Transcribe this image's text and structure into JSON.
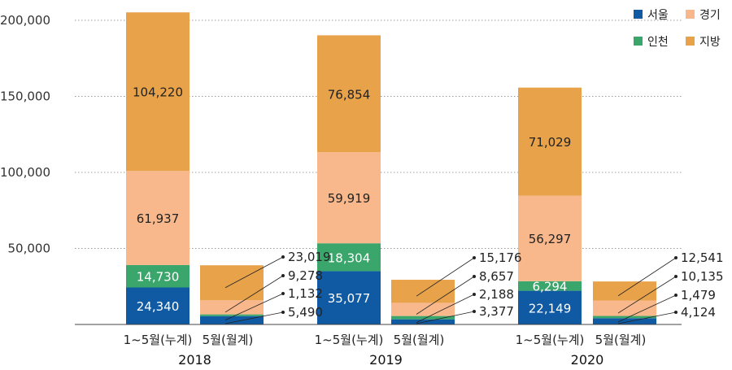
{
  "chart_data": {
    "type": "bar",
    "stacked": true,
    "ylim": [
      0,
      200000
    ],
    "yticks": [
      "50,000",
      "100,000",
      "150,000",
      "200,000"
    ],
    "ytick_values": [
      50000,
      100000,
      150000,
      200000
    ],
    "grid": true,
    "legend_position": "top-right",
    "categories": [
      "1~5월(누계)",
      "5월(월계)",
      "1~5월(누계)",
      "5월(월계)",
      "1~5월(누계)",
      "5월(월계)"
    ],
    "groups": [
      "2018",
      "2019",
      "2020"
    ],
    "series": [
      {
        "name": "서울",
        "color": "#0f5aa3",
        "values": [
          24340,
          5490,
          35077,
          3377,
          22149,
          4124
        ],
        "labels": [
          "24,340",
          "5,490",
          "35,077",
          "3,377",
          "22,149",
          "4,124"
        ]
      },
      {
        "name": "인천",
        "color": "#3aa66b",
        "values": [
          14730,
          1132,
          18304,
          2188,
          6294,
          1479
        ],
        "labels": [
          "14,730",
          "1,132",
          "18,304",
          "2,188",
          "6,294",
          "1,479"
        ]
      },
      {
        "name": "경기",
        "color": "#f8b88b",
        "values": [
          61937,
          9278,
          59919,
          8657,
          56297,
          10135
        ],
        "labels": [
          "61,937",
          "9,278",
          "59,919",
          "8,657",
          "56,297",
          "10,135"
        ]
      },
      {
        "name": "지방",
        "color": "#e7a24a",
        "values": [
          104220,
          23019,
          76854,
          15176,
          71029,
          12541
        ],
        "labels": [
          "104,220",
          "23,019",
          "76,854",
          "15,176",
          "71,029",
          "12,541"
        ]
      }
    ],
    "legend_order": [
      "서울",
      "경기",
      "인천",
      "지방"
    ]
  }
}
